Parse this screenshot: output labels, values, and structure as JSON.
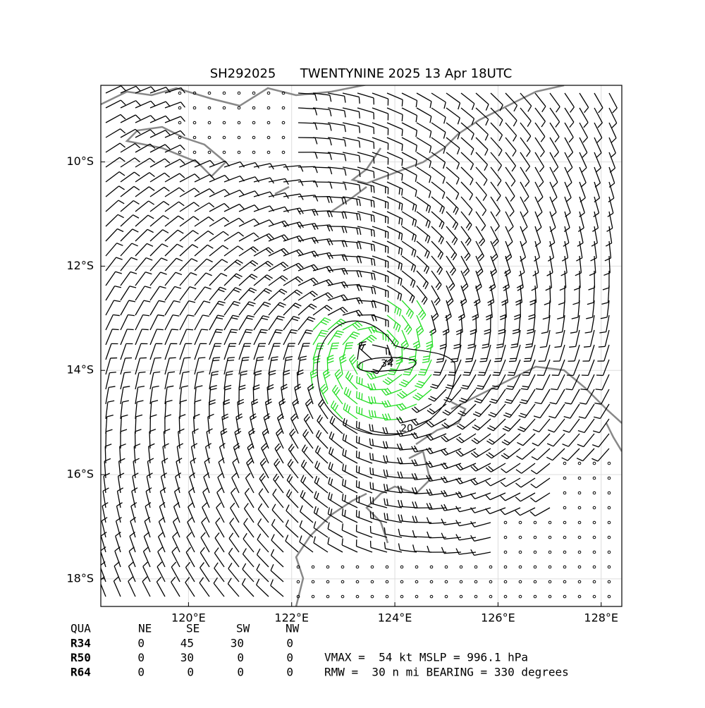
{
  "map": {
    "title": "SH292025      TWENTYNINE 2025 13 Apr 18UTC",
    "lon_range": [
      118.3,
      128.4
    ],
    "lat_range": [
      -8.53,
      -18.53
    ],
    "lon_ticks": [
      {
        "value": 120,
        "label": "120°E"
      },
      {
        "value": 122,
        "label": "122°E"
      },
      {
        "value": 124,
        "label": "124°E"
      },
      {
        "value": 126,
        "label": "126°E"
      },
      {
        "value": 128,
        "label": "128°E"
      }
    ],
    "lat_ticks": [
      {
        "value": -10,
        "label": "10°S"
      },
      {
        "value": -12,
        "label": "12°S"
      },
      {
        "value": -14,
        "label": "14°S"
      },
      {
        "value": -16,
        "label": "16°S"
      },
      {
        "value": -18,
        "label": "18°S"
      }
    ],
    "contour_labels": [
      "34",
      "20"
    ]
  },
  "table": {
    "header": [
      "QUA",
      "NE",
      "SE",
      "SW",
      "NW"
    ],
    "rows": [
      [
        "R34",
        "0",
        "45",
        "30",
        "0"
      ],
      [
        "R50",
        "0",
        "30",
        "0",
        "0"
      ],
      [
        "R64",
        "0",
        "0",
        "0",
        "0"
      ]
    ]
  },
  "summary": [
    "VMAX =  54 kt MSLP = 996.1 hPa",
    "RMW =  30 n mi BEARING = 330 degrees"
  ]
}
